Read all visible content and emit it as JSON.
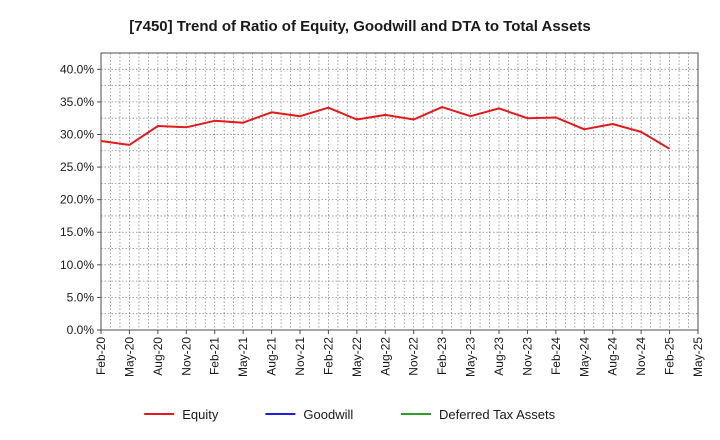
{
  "chart_data": {
    "type": "line",
    "title": "[7450]  Trend of Ratio of Equity, Goodwill and DTA to Total Assets",
    "xlabel": "",
    "ylabel": "",
    "ylim": [
      0,
      42.5
    ],
    "yticks": [
      0,
      5,
      10,
      15,
      20,
      25,
      30,
      35,
      40
    ],
    "ytick_labels": [
      "0.0%",
      "5.0%",
      "10.0%",
      "15.0%",
      "20.0%",
      "25.0%",
      "30.0%",
      "35.0%",
      "40.0%"
    ],
    "x_tick_labels": [
      "Feb-20",
      "May-20",
      "Aug-20",
      "Nov-20",
      "Feb-21",
      "May-21",
      "Aug-21",
      "Nov-21",
      "Feb-22",
      "May-22",
      "Aug-22",
      "Nov-22",
      "Feb-23",
      "May-23",
      "Aug-23",
      "Nov-23",
      "Feb-24",
      "May-24",
      "Aug-24",
      "Nov-24",
      "Feb-25",
      "May-25"
    ],
    "grid": true,
    "legend_position": "bottom",
    "series": [
      {
        "name": "Equity",
        "color": "#e31a1c",
        "values": [
          29.0,
          28.4,
          31.3,
          31.1,
          32.1,
          31.8,
          33.4,
          32.8,
          34.1,
          32.3,
          33.0,
          32.3,
          34.2,
          32.8,
          34.0,
          32.5,
          32.6,
          30.8,
          31.6,
          30.4,
          27.8,
          null
        ]
      },
      {
        "name": "Goodwill",
        "color": "#1f1fd6",
        "values": []
      },
      {
        "name": "Deferred Tax Assets",
        "color": "#2ca02c",
        "values": []
      }
    ]
  }
}
